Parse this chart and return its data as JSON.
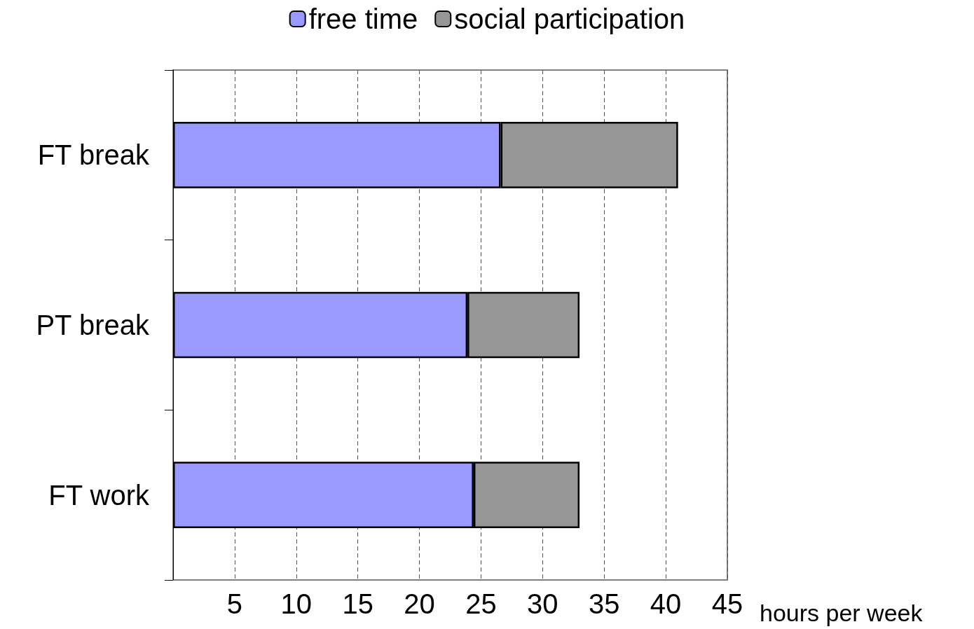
{
  "chart_data": {
    "type": "bar",
    "orientation": "horizontal",
    "stacked": true,
    "xlabel": "hours per week",
    "categories": [
      "FT break",
      "PT break",
      "FT work"
    ],
    "series": [
      {
        "name": "free time",
        "color": "#9999ff",
        "values": [
          26.6,
          23.9,
          24.4
        ]
      },
      {
        "name": "social participation",
        "color": "#969696",
        "values": [
          14.4,
          9.1,
          8.6
        ]
      }
    ],
    "xlim": [
      0,
      45
    ],
    "xticks": [
      {
        "value": 0,
        "label": null
      },
      5,
      10,
      15,
      20,
      25,
      30,
      35,
      40,
      45
    ],
    "grid": "x",
    "legend": "top"
  }
}
